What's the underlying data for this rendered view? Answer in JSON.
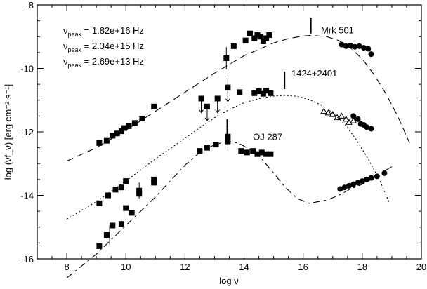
{
  "chart_data": {
    "type": "scatter",
    "title": "",
    "xlabel": "log ν",
    "ylabel": "log (νf_ν) [erg cm⁻² s⁻¹]",
    "xlim": [
      7,
      20
    ],
    "ylim": [
      -16,
      -8
    ],
    "x_ticks": [
      8,
      10,
      12,
      14,
      16,
      18,
      20
    ],
    "y_ticks": [
      -8,
      -10,
      -12,
      -14,
      -16
    ],
    "grid": false,
    "legend": "none",
    "peak_legend": [
      {
        "label": "ν",
        "sub": "peak",
        "value": " = 1.82e+16 Hz"
      },
      {
        "label": "ν",
        "sub": "peak",
        "value": " = 2.34e+15 Hz"
      },
      {
        "label": "ν",
        "sub": "peak",
        "value": " = 2.69e+13 Hz"
      }
    ],
    "series": [
      {
        "name": "Mrk 501",
        "label_pos": [
          16.6,
          -8.9
        ],
        "peak_marker": {
          "x": 16.26,
          "y_top": -8.4,
          "y_bottom": -8.9
        },
        "model_dash": "10,6",
        "model": [
          [
            8.0,
            -12.92
          ],
          [
            9.0,
            -12.5
          ],
          [
            10.0,
            -11.95
          ],
          [
            11.0,
            -11.35
          ],
          [
            12.0,
            -10.75
          ],
          [
            13.0,
            -10.15
          ],
          [
            14.0,
            -9.6
          ],
          [
            14.5,
            -9.4
          ],
          [
            15.0,
            -9.2
          ],
          [
            15.5,
            -9.06
          ],
          [
            16.0,
            -8.98
          ],
          [
            16.3,
            -8.96
          ],
          [
            16.8,
            -9.0
          ],
          [
            17.2,
            -9.12
          ],
          [
            17.6,
            -9.35
          ],
          [
            18.0,
            -9.7
          ],
          [
            18.4,
            -10.2
          ],
          [
            18.8,
            -10.8
          ],
          [
            19.2,
            -11.5
          ],
          [
            19.6,
            -12.35
          ]
        ],
        "squares": [
          [
            9.1,
            -12.35
          ],
          [
            9.35,
            -12.28
          ],
          [
            9.55,
            -12.12
          ],
          [
            9.7,
            -12.05
          ],
          [
            9.85,
            -11.98
          ],
          [
            9.95,
            -11.88
          ],
          [
            10.1,
            -11.82
          ],
          [
            10.3,
            -11.72
          ],
          [
            10.55,
            -11.58
          ],
          [
            10.95,
            -11.2
          ],
          [
            13.4,
            -9.68
          ],
          [
            13.65,
            -9.3
          ],
          [
            14.05,
            -9.12
          ],
          [
            14.2,
            -8.9
          ],
          [
            14.35,
            -9.05
          ],
          [
            14.45,
            -8.95
          ],
          [
            14.55,
            -9.0
          ],
          [
            14.65,
            -9.15
          ],
          [
            14.75,
            -9.05
          ],
          [
            14.85,
            -8.95
          ]
        ],
        "circles": [
          [
            17.3,
            -9.25
          ],
          [
            17.45,
            -9.3
          ],
          [
            17.6,
            -9.28
          ],
          [
            17.75,
            -9.32
          ],
          [
            17.9,
            -9.3
          ],
          [
            18.05,
            -9.35
          ],
          [
            18.2,
            -9.38
          ],
          [
            18.3,
            -9.55
          ]
        ]
      },
      {
        "name": "1424+2401",
        "label_pos": [
          15.6,
          -10.25
        ],
        "peak_marker": {
          "x": 15.37,
          "y_top": -10.1,
          "y_bottom": -10.65
        },
        "model_dash": "2,3",
        "model": [
          [
            8.0,
            -14.75
          ],
          [
            9.0,
            -14.2
          ],
          [
            10.0,
            -13.55
          ],
          [
            11.0,
            -12.85
          ],
          [
            12.0,
            -12.2
          ],
          [
            13.0,
            -11.55
          ],
          [
            13.5,
            -11.3
          ],
          [
            14.0,
            -11.08
          ],
          [
            14.5,
            -10.95
          ],
          [
            15.0,
            -10.87
          ],
          [
            15.4,
            -10.85
          ],
          [
            15.8,
            -10.88
          ],
          [
            16.2,
            -10.98
          ],
          [
            16.6,
            -11.15
          ],
          [
            17.0,
            -11.4
          ],
          [
            17.4,
            -11.75
          ],
          [
            17.8,
            -12.25
          ],
          [
            18.2,
            -12.85
          ],
          [
            18.6,
            -13.55
          ],
          [
            18.9,
            -14.2
          ]
        ],
        "squares": [
          [
            9.1,
            -14.25
          ],
          [
            9.4,
            -14.0
          ],
          [
            9.65,
            -13.82
          ],
          [
            9.85,
            -13.75
          ],
          [
            10.0,
            -13.55
          ],
          [
            10.45,
            -13.95
          ],
          [
            10.95,
            -13.6
          ],
          [
            12.55,
            -10.95
          ],
          [
            12.75,
            -11.2
          ],
          [
            13.1,
            -10.95
          ],
          [
            13.45,
            -10.6
          ],
          [
            13.85,
            -10.75
          ],
          [
            14.35,
            -10.78
          ],
          [
            14.5,
            -10.72
          ],
          [
            14.65,
            -10.8
          ],
          [
            14.75,
            -10.7
          ],
          [
            14.9,
            -10.78
          ]
        ],
        "triangles": [
          [
            16.7,
            -11.35
          ],
          [
            16.85,
            -11.4
          ],
          [
            17.0,
            -11.45
          ],
          [
            17.15,
            -11.55
          ],
          [
            17.3,
            -11.5
          ],
          [
            17.45,
            -11.6
          ],
          [
            17.55,
            -11.7
          ],
          [
            17.7,
            -11.65
          ]
        ],
        "circles": [
          [
            17.7,
            -11.5
          ],
          [
            17.85,
            -11.6
          ],
          [
            17.95,
            -11.75
          ],
          [
            18.05,
            -11.78
          ],
          [
            18.15,
            -11.85
          ],
          [
            18.3,
            -11.9
          ]
        ]
      },
      {
        "name": "OJ 287",
        "label_pos": [
          14.3,
          -12.25
        ],
        "peak_marker": {
          "x": 13.43,
          "y_top": -11.6,
          "y_bottom": -12.15
        },
        "model_dash": "10,5,3,5",
        "model": [
          [
            8.0,
            -16.6
          ],
          [
            9.0,
            -15.85
          ],
          [
            10.0,
            -14.95
          ],
          [
            11.0,
            -14.05
          ],
          [
            11.5,
            -13.55
          ],
          [
            12.0,
            -13.05
          ],
          [
            12.5,
            -12.65
          ],
          [
            13.0,
            -12.4
          ],
          [
            13.43,
            -12.3
          ],
          [
            13.8,
            -12.35
          ],
          [
            14.2,
            -12.55
          ],
          [
            14.6,
            -12.85
          ],
          [
            15.0,
            -13.3
          ],
          [
            15.4,
            -13.75
          ],
          [
            15.8,
            -14.1
          ],
          [
            16.2,
            -14.25
          ],
          [
            16.8,
            -14.15
          ],
          [
            17.2,
            -14.0
          ],
          [
            17.6,
            -13.8
          ],
          [
            18.0,
            -13.65
          ],
          [
            18.4,
            -13.45
          ],
          [
            18.8,
            -13.2
          ],
          [
            19.0,
            -13.1
          ]
        ],
        "squares": [
          [
            9.1,
            -15.6
          ],
          [
            9.35,
            -15.25
          ],
          [
            9.55,
            -14.95
          ],
          [
            9.85,
            -14.9
          ],
          [
            10.0,
            -14.4
          ],
          [
            10.2,
            -14.55
          ],
          [
            10.45,
            -13.85
          ],
          [
            10.95,
            -13.5
          ],
          [
            12.5,
            -12.6
          ],
          [
            12.75,
            -12.5
          ],
          [
            13.05,
            -12.4
          ],
          [
            13.45,
            -12.15
          ],
          [
            13.45,
            -12.3
          ],
          [
            13.9,
            -12.6
          ],
          [
            14.1,
            -12.65
          ],
          [
            14.3,
            -12.6
          ],
          [
            14.45,
            -12.7
          ],
          [
            14.6,
            -12.65
          ],
          [
            14.75,
            -12.7
          ],
          [
            14.9,
            -12.7
          ]
        ],
        "circles": [
          [
            17.25,
            -13.8
          ],
          [
            17.4,
            -13.75
          ],
          [
            17.55,
            -13.7
          ],
          [
            17.7,
            -13.65
          ],
          [
            17.85,
            -13.6
          ],
          [
            18.0,
            -13.55
          ],
          [
            18.15,
            -13.5
          ],
          [
            18.3,
            -13.45
          ],
          [
            18.5,
            -13.4
          ],
          [
            18.75,
            -13.3
          ]
        ]
      }
    ],
    "upper_limits": [
      [
        12.55,
        -10.95
      ],
      [
        12.75,
        -11.2
      ],
      [
        13.1,
        -10.95
      ],
      [
        13.45,
        -10.6
      ]
    ]
  }
}
